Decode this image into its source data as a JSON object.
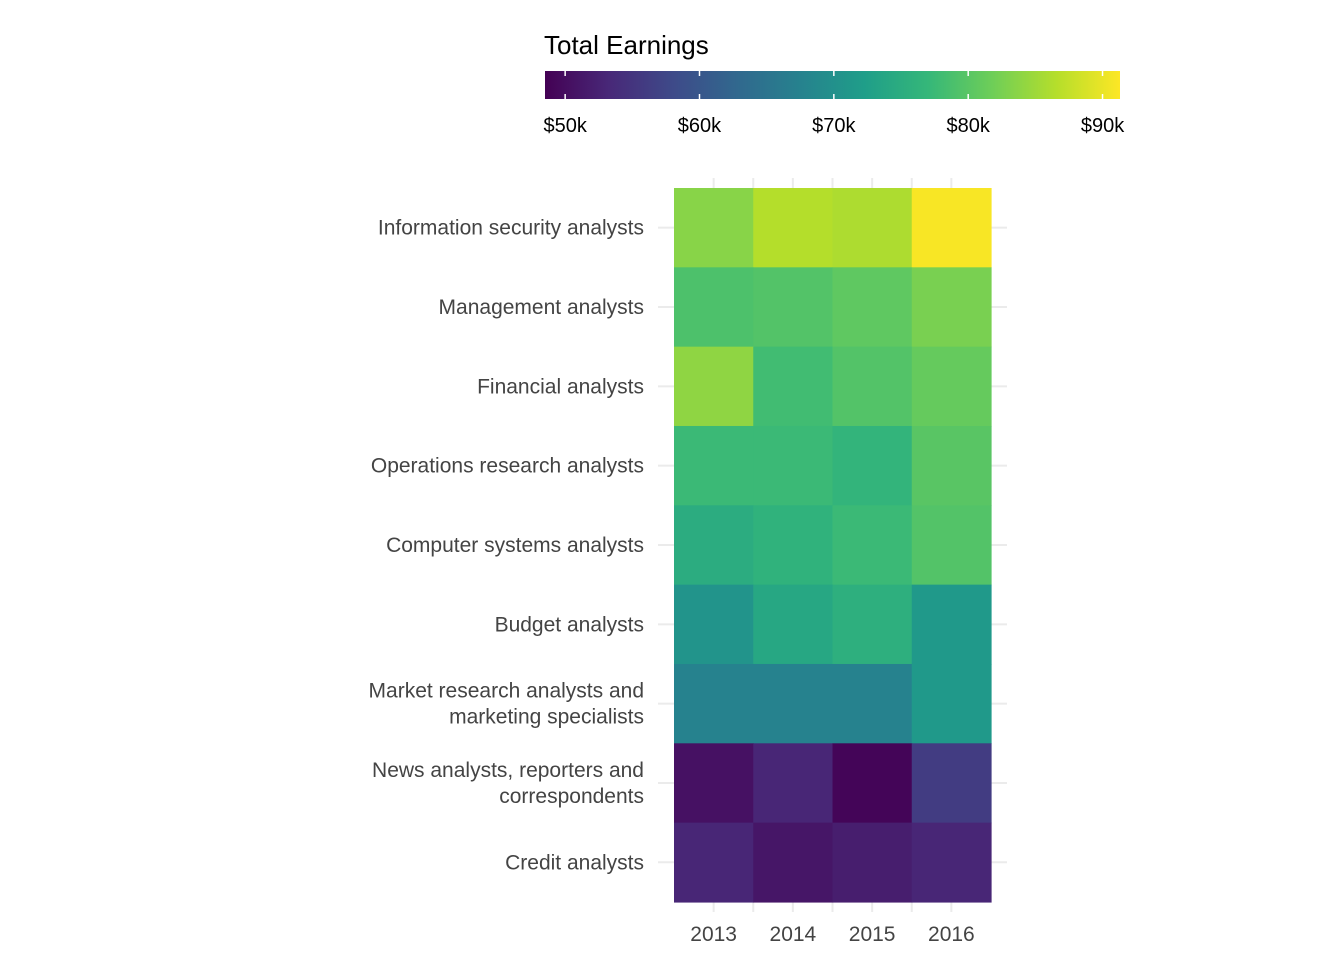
{
  "chart_data": {
    "type": "heatmap",
    "x": [
      "2013",
      "2014",
      "2015",
      "2016"
    ],
    "y": [
      "Information security analysts",
      "Management analysts",
      "Financial analysts",
      "Operations research analysts",
      "Computer systems analysts",
      "Budget analysts",
      "Market research analysts and marketing specialists",
      "News analysts, reporters and correspondents",
      "Credit analysts"
    ],
    "y_display_lines": [
      [
        "Information security analysts"
      ],
      [
        "Management analysts"
      ],
      [
        "Financial analysts"
      ],
      [
        "Operations research analysts"
      ],
      [
        "Computer systems analysts"
      ],
      [
        "Budget analysts"
      ],
      [
        "Market research analysts and",
        "marketing specialists"
      ],
      [
        "News analysts, reporters and",
        "correspondents"
      ],
      [
        "Credit analysts"
      ]
    ],
    "values": [
      [
        83500,
        86500,
        86000,
        91000
      ],
      [
        79000,
        79500,
        80500,
        82500
      ],
      [
        84000,
        78000,
        79500,
        81000
      ],
      [
        77500,
        77500,
        76500,
        80000
      ],
      [
        75000,
        76000,
        77500,
        79500
      ],
      [
        70500,
        74000,
        75500,
        71500
      ],
      [
        67500,
        67500,
        67500,
        71500
      ],
      [
        50500,
        53000,
        49000,
        56000
      ],
      [
        53000,
        51000,
        52000,
        53000
      ]
    ],
    "legend": {
      "title": "Total Earnings",
      "position": "top",
      "min": 48500,
      "max": 91300,
      "ticks": [
        {
          "value": 50000,
          "label": "$50k"
        },
        {
          "value": 60000,
          "label": "$60k"
        },
        {
          "value": 70000,
          "label": "$70k"
        },
        {
          "value": 80000,
          "label": "$80k"
        },
        {
          "value": 90000,
          "label": "$90k"
        }
      ]
    },
    "color_scale": "viridis",
    "colors": [
      "#440154",
      "#482878",
      "#3e4a89",
      "#31688e",
      "#26828e",
      "#1f9e89",
      "#35b779",
      "#6ece58",
      "#b5de2b",
      "#fde725"
    ],
    "grid": true
  }
}
